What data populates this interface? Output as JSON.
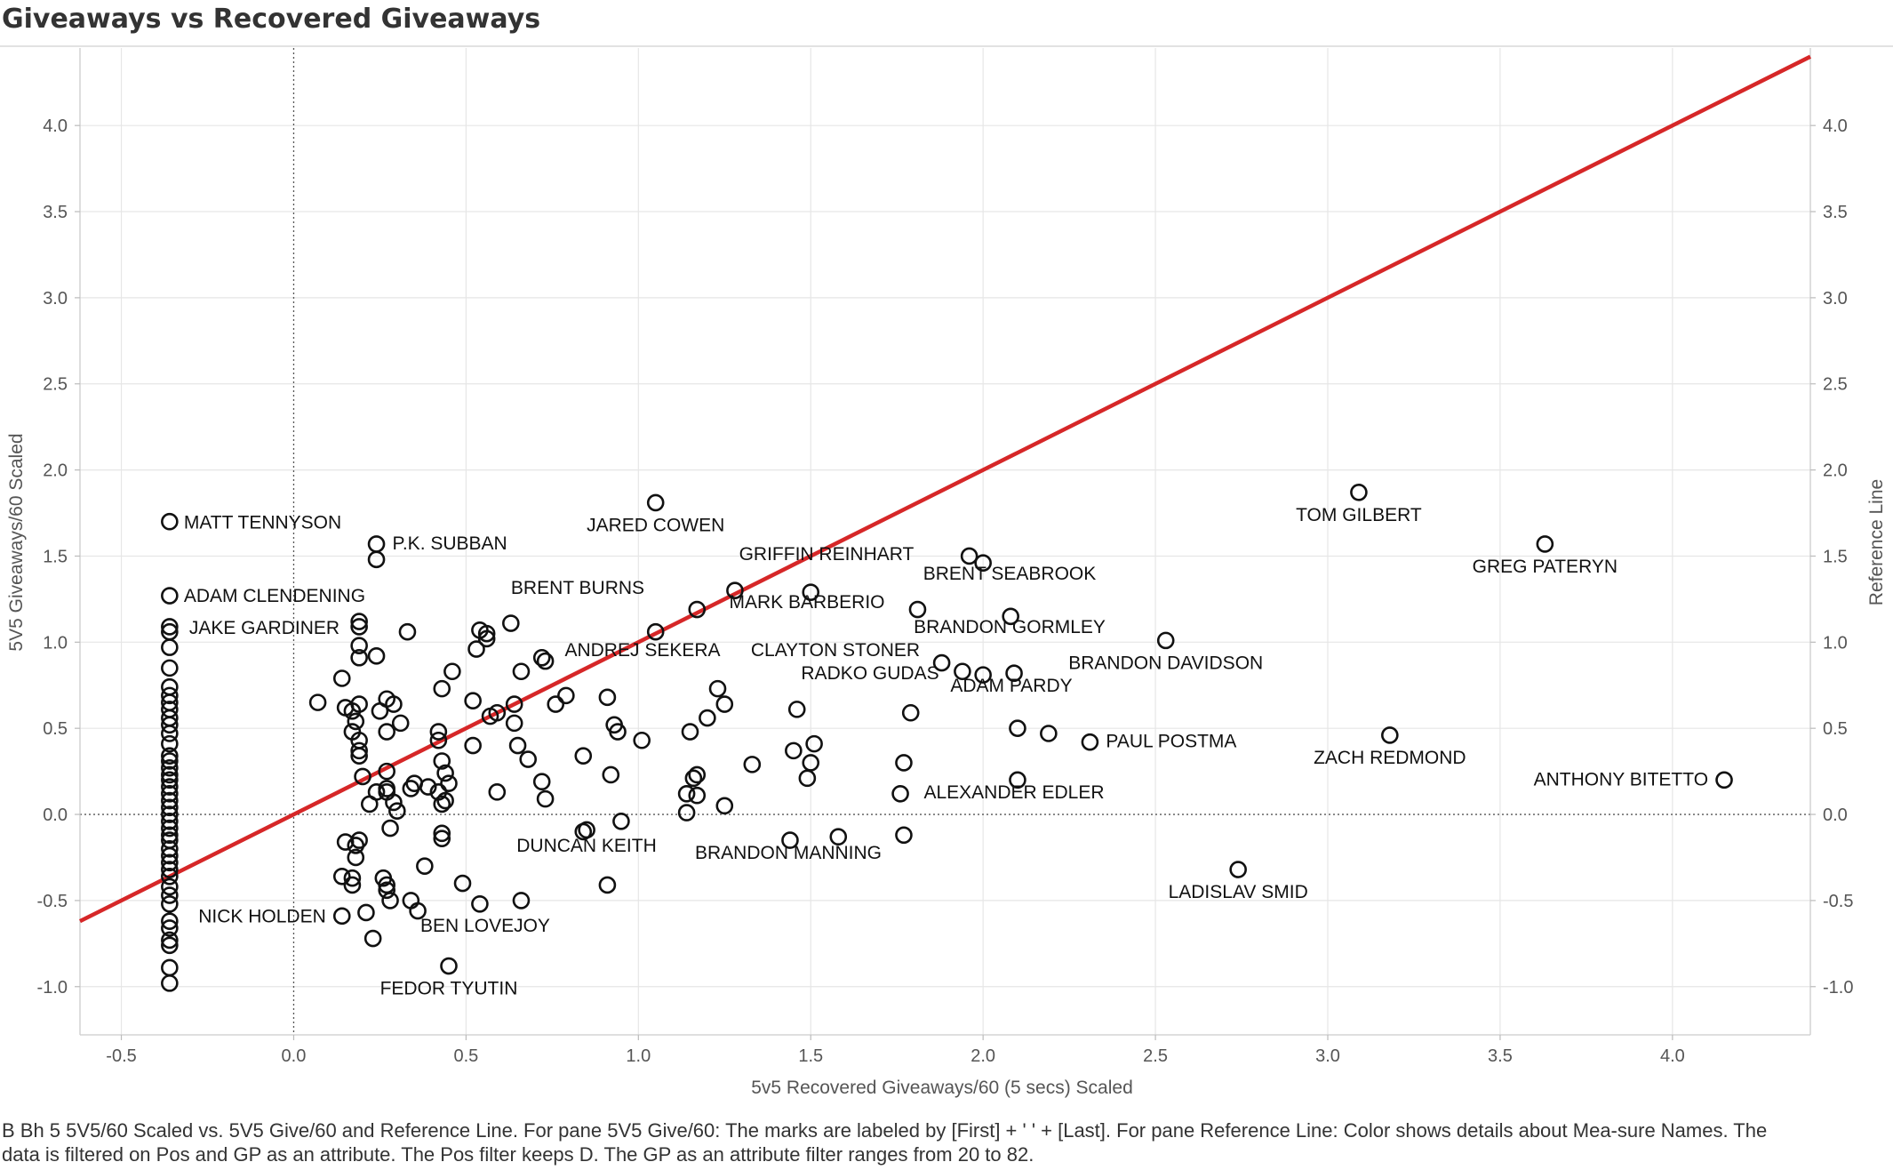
{
  "title": "Giveaways vs Recovered Giveaways",
  "caption": "B Bh 5 5V5/60 Scaled vs. 5V5 Give/60 and Reference Line.  For pane 5V5 Give/60:  The marks are labeled by [First] + ' ' + [Last].  For pane Reference Line:  Color shows details about Mea-sure Names. The data is filtered on Pos and GP as an attribute. The Pos filter keeps D. The GP as an attribute filter ranges from 20 to 82.",
  "chart_data": {
    "type": "scatter",
    "title": "Giveaways vs Recovered Giveaways",
    "xlabel": "5v5 Recovered Giveaways/60 (5 secs) Scaled",
    "ylabel": "5V5 Giveaways/60 Scaled",
    "y2label": "Reference Line",
    "xlim": [
      -0.62,
      4.4
    ],
    "ylim": [
      -1.28,
      4.45
    ],
    "xticks": [
      -0.5,
      0.0,
      0.5,
      1.0,
      1.5,
      2.0,
      2.5,
      3.0,
      3.5,
      4.0
    ],
    "yticks": [
      -1.0,
      -0.5,
      0.0,
      0.5,
      1.0,
      1.5,
      2.0,
      2.5,
      3.0,
      3.5,
      4.0
    ],
    "xtick_labels": [
      "-0.5",
      "0.0",
      "0.5",
      "1.0",
      "1.5",
      "2.0",
      "2.5",
      "3.0",
      "3.5",
      "4.0"
    ],
    "ytick_labels": [
      "-1.0",
      "-0.5",
      "0.0",
      "0.5",
      "1.0",
      "1.5",
      "2.0",
      "2.5",
      "3.0",
      "3.5",
      "4.0"
    ],
    "grid": true,
    "reference_line": {
      "color": "#d62728",
      "x": [
        -0.62,
        4.4
      ],
      "y": [
        -0.62,
        4.4
      ]
    },
    "marker_color": "#111111",
    "labeled_points": [
      {
        "x": -0.36,
        "y": 1.7,
        "label": "MATT TENNYSON",
        "anchor": "right"
      },
      {
        "x": 0.24,
        "y": 1.57,
        "label": "P.K. SUBBAN",
        "anchor": "right"
      },
      {
        "x": 1.05,
        "y": 1.81,
        "label": "JARED COWEN",
        "anchor": "below"
      },
      {
        "x": 3.09,
        "y": 1.87,
        "label": "TOM GILBERT",
        "anchor": "below"
      },
      {
        "x": 3.63,
        "y": 1.57,
        "label": "GREG PATERYN",
        "anchor": "below"
      },
      {
        "x": -0.36,
        "y": 1.27,
        "label": "ADAM CLENDENING",
        "anchor": "right"
      },
      {
        "x": -0.36,
        "y": 1.08,
        "label": "JAKE GARDINER",
        "anchor": "right"
      },
      {
        "x": 0.92,
        "y": 1.26,
        "label": "BRENT BURNS",
        "anchor": "custom"
      },
      {
        "x": 1.38,
        "y": 1.44,
        "label": "GRIFFIN REINHART",
        "anchor": "custom"
      },
      {
        "x": 1.87,
        "y": 1.32,
        "label": "BRENT SEABROOK",
        "anchor": "custom"
      },
      {
        "x": 1.68,
        "y": 1.15,
        "label": "MARK BARBERIO",
        "anchor": "custom"
      },
      {
        "x": 2.08,
        "y": 1.01,
        "label": "BRANDON GORMLEY",
        "anchor": "custom"
      },
      {
        "x": 0.72,
        "y": 0.9,
        "label": "ANDREJ SEKERA",
        "anchor": "custom"
      },
      {
        "x": 1.88,
        "y": 0.87,
        "label": "CLAYTON STONER",
        "anchor": "custom"
      },
      {
        "x": 2.53,
        "y": 1.01,
        "label": "BRANDON DAVIDSON",
        "anchor": "below-ish"
      },
      {
        "x": 1.57,
        "y": 0.73,
        "label": "RADKO GUDAS",
        "anchor": "custom"
      },
      {
        "x": 2.1,
        "y": 0.82,
        "label": "ADAM PARDY",
        "anchor": "custom"
      },
      {
        "x": 2.31,
        "y": 0.42,
        "label": "PAUL POSTMA",
        "anchor": "right"
      },
      {
        "x": 3.18,
        "y": 0.46,
        "label": "ZACH REDMOND",
        "anchor": "below"
      },
      {
        "x": 4.15,
        "y": 0.2,
        "label": "ANTHONY BITETTO",
        "anchor": "left"
      },
      {
        "x": 1.77,
        "y": -0.12,
        "label": "ALEXANDER EDLER",
        "anchor": "custom"
      },
      {
        "x": 0.85,
        "y": -0.07,
        "label": "DUNCAN KEITH",
        "anchor": "custom"
      },
      {
        "x": 1.44,
        "y": -0.14,
        "label": "BRANDON MANNING",
        "anchor": "custom"
      },
      {
        "x": 2.74,
        "y": -0.32,
        "label": "LADISLAV SMID",
        "anchor": "below"
      },
      {
        "x": 0.14,
        "y": -0.59,
        "label": "NICK HOLDEN",
        "anchor": "left"
      },
      {
        "x": 0.36,
        "y": -0.56,
        "label": "BEN LOVEJOY",
        "anchor": "custom"
      },
      {
        "x": 0.45,
        "y": -0.88,
        "label": "FEDOR TYUTIN",
        "anchor": "below"
      }
    ],
    "points": [
      {
        "x": -0.36,
        "y": 1.7
      },
      {
        "x": -0.36,
        "y": 1.27
      },
      {
        "x": -0.36,
        "y": 1.09
      },
      {
        "x": -0.36,
        "y": 1.06
      },
      {
        "x": -0.36,
        "y": 0.97
      },
      {
        "x": -0.36,
        "y": 0.85
      },
      {
        "x": -0.36,
        "y": 0.74
      },
      {
        "x": -0.36,
        "y": 0.69
      },
      {
        "x": -0.36,
        "y": 0.65
      },
      {
        "x": -0.36,
        "y": 0.61
      },
      {
        "x": -0.36,
        "y": 0.56
      },
      {
        "x": -0.36,
        "y": 0.52
      },
      {
        "x": -0.36,
        "y": 0.47
      },
      {
        "x": -0.36,
        "y": 0.41
      },
      {
        "x": -0.36,
        "y": 0.34
      },
      {
        "x": -0.36,
        "y": 0.31
      },
      {
        "x": -0.36,
        "y": 0.27
      },
      {
        "x": -0.36,
        "y": 0.23
      },
      {
        "x": -0.36,
        "y": 0.2
      },
      {
        "x": -0.36,
        "y": 0.16
      },
      {
        "x": -0.36,
        "y": 0.12
      },
      {
        "x": -0.36,
        "y": 0.08
      },
      {
        "x": -0.36,
        "y": 0.04
      },
      {
        "x": -0.36,
        "y": 0.0
      },
      {
        "x": -0.36,
        "y": -0.04
      },
      {
        "x": -0.36,
        "y": -0.08
      },
      {
        "x": -0.36,
        "y": -0.12
      },
      {
        "x": -0.36,
        "y": -0.15
      },
      {
        "x": -0.36,
        "y": -0.2
      },
      {
        "x": -0.36,
        "y": -0.24
      },
      {
        "x": -0.36,
        "y": -0.28
      },
      {
        "x": -0.36,
        "y": -0.32
      },
      {
        "x": -0.36,
        "y": -0.36
      },
      {
        "x": -0.36,
        "y": -0.42
      },
      {
        "x": -0.36,
        "y": -0.47
      },
      {
        "x": -0.36,
        "y": -0.52
      },
      {
        "x": -0.36,
        "y": -0.62
      },
      {
        "x": -0.36,
        "y": -0.66
      },
      {
        "x": -0.36,
        "y": -0.73
      },
      {
        "x": -0.36,
        "y": -0.76
      },
      {
        "x": -0.36,
        "y": -0.89
      },
      {
        "x": -0.36,
        "y": -0.98
      },
      {
        "x": 0.24,
        "y": 1.57
      },
      {
        "x": 0.24,
        "y": 1.48
      },
      {
        "x": 1.05,
        "y": 1.81
      },
      {
        "x": 3.09,
        "y": 1.87
      },
      {
        "x": 3.63,
        "y": 1.57
      },
      {
        "x": 1.96,
        "y": 1.5
      },
      {
        "x": 2.0,
        "y": 1.46
      },
      {
        "x": 1.5,
        "y": 1.29
      },
      {
        "x": 1.28,
        "y": 1.3
      },
      {
        "x": 1.17,
        "y": 1.19
      },
      {
        "x": 1.81,
        "y": 1.19
      },
      {
        "x": 2.08,
        "y": 1.15
      },
      {
        "x": 1.05,
        "y": 1.06
      },
      {
        "x": 2.53,
        "y": 1.01
      },
      {
        "x": 0.19,
        "y": 1.12
      },
      {
        "x": 0.19,
        "y": 1.09
      },
      {
        "x": 0.33,
        "y": 1.06
      },
      {
        "x": 0.54,
        "y": 1.07
      },
      {
        "x": 0.56,
        "y": 1.05
      },
      {
        "x": 0.56,
        "y": 1.02
      },
      {
        "x": 0.53,
        "y": 0.96
      },
      {
        "x": 0.63,
        "y": 1.11
      },
      {
        "x": 0.19,
        "y": 0.98
      },
      {
        "x": 0.24,
        "y": 0.92
      },
      {
        "x": 0.19,
        "y": 0.91
      },
      {
        "x": 0.72,
        "y": 0.91
      },
      {
        "x": 0.73,
        "y": 0.89
      },
      {
        "x": 0.46,
        "y": 0.83
      },
      {
        "x": 0.66,
        "y": 0.83
      },
      {
        "x": 0.14,
        "y": 0.79
      },
      {
        "x": 1.88,
        "y": 0.88
      },
      {
        "x": 1.94,
        "y": 0.83
      },
      {
        "x": 2.0,
        "y": 0.81
      },
      {
        "x": 2.09,
        "y": 0.82
      },
      {
        "x": 1.23,
        "y": 0.73
      },
      {
        "x": 1.25,
        "y": 0.64
      },
      {
        "x": 0.43,
        "y": 0.73
      },
      {
        "x": 0.79,
        "y": 0.69
      },
      {
        "x": 0.91,
        "y": 0.68
      },
      {
        "x": 0.52,
        "y": 0.66
      },
      {
        "x": 0.27,
        "y": 0.67
      },
      {
        "x": 0.07,
        "y": 0.65
      },
      {
        "x": 0.76,
        "y": 0.64
      },
      {
        "x": 0.64,
        "y": 0.64
      },
      {
        "x": 0.29,
        "y": 0.64
      },
      {
        "x": 0.19,
        "y": 0.64
      },
      {
        "x": 0.15,
        "y": 0.62
      },
      {
        "x": 0.17,
        "y": 0.6
      },
      {
        "x": 0.25,
        "y": 0.6
      },
      {
        "x": 0.59,
        "y": 0.59
      },
      {
        "x": 1.2,
        "y": 0.56
      },
      {
        "x": 0.57,
        "y": 0.57
      },
      {
        "x": 1.46,
        "y": 0.61
      },
      {
        "x": 1.79,
        "y": 0.59
      },
      {
        "x": 0.18,
        "y": 0.54
      },
      {
        "x": 0.64,
        "y": 0.53
      },
      {
        "x": 0.31,
        "y": 0.53
      },
      {
        "x": 0.93,
        "y": 0.52
      },
      {
        "x": 0.17,
        "y": 0.48
      },
      {
        "x": 0.27,
        "y": 0.48
      },
      {
        "x": 0.42,
        "y": 0.48
      },
      {
        "x": 0.94,
        "y": 0.48
      },
      {
        "x": 1.15,
        "y": 0.48
      },
      {
        "x": 1.01,
        "y": 0.43
      },
      {
        "x": 0.19,
        "y": 0.43
      },
      {
        "x": 0.42,
        "y": 0.43
      },
      {
        "x": 0.52,
        "y": 0.4
      },
      {
        "x": 0.65,
        "y": 0.4
      },
      {
        "x": 2.1,
        "y": 0.5
      },
      {
        "x": 2.19,
        "y": 0.47
      },
      {
        "x": 2.31,
        "y": 0.42
      },
      {
        "x": 3.18,
        "y": 0.46
      },
      {
        "x": 1.51,
        "y": 0.41
      },
      {
        "x": 1.45,
        "y": 0.37
      },
      {
        "x": 0.19,
        "y": 0.37
      },
      {
        "x": 0.19,
        "y": 0.34
      },
      {
        "x": 0.84,
        "y": 0.34
      },
      {
        "x": 0.68,
        "y": 0.32
      },
      {
        "x": 0.43,
        "y": 0.31
      },
      {
        "x": 1.33,
        "y": 0.29
      },
      {
        "x": 1.5,
        "y": 0.3
      },
      {
        "x": 1.77,
        "y": 0.3
      },
      {
        "x": 0.27,
        "y": 0.25
      },
      {
        "x": 0.44,
        "y": 0.24
      },
      {
        "x": 0.92,
        "y": 0.23
      },
      {
        "x": 1.17,
        "y": 0.23
      },
      {
        "x": 1.16,
        "y": 0.21
      },
      {
        "x": 0.2,
        "y": 0.22
      },
      {
        "x": 1.49,
        "y": 0.21
      },
      {
        "x": 2.1,
        "y": 0.2
      },
      {
        "x": 4.15,
        "y": 0.2
      },
      {
        "x": 0.72,
        "y": 0.19
      },
      {
        "x": 0.45,
        "y": 0.18
      },
      {
        "x": 0.35,
        "y": 0.18
      },
      {
        "x": 0.39,
        "y": 0.16
      },
      {
        "x": 0.34,
        "y": 0.15
      },
      {
        "x": 0.27,
        "y": 0.15
      },
      {
        "x": 0.27,
        "y": 0.13
      },
      {
        "x": 0.24,
        "y": 0.13
      },
      {
        "x": 0.42,
        "y": 0.13
      },
      {
        "x": 0.59,
        "y": 0.13
      },
      {
        "x": 1.14,
        "y": 0.12
      },
      {
        "x": 1.17,
        "y": 0.11
      },
      {
        "x": 1.76,
        "y": 0.12
      },
      {
        "x": 0.44,
        "y": 0.08
      },
      {
        "x": 0.29,
        "y": 0.07
      },
      {
        "x": 0.73,
        "y": 0.09
      },
      {
        "x": 0.22,
        "y": 0.06
      },
      {
        "x": 0.43,
        "y": 0.06
      },
      {
        "x": 1.25,
        "y": 0.05
      },
      {
        "x": 0.3,
        "y": 0.02
      },
      {
        "x": 1.14,
        "y": 0.01
      },
      {
        "x": 0.95,
        "y": -0.04
      },
      {
        "x": 0.28,
        "y": -0.08
      },
      {
        "x": 0.85,
        "y": -0.09
      },
      {
        "x": 0.84,
        "y": -0.1
      },
      {
        "x": 0.43,
        "y": -0.11
      },
      {
        "x": 0.43,
        "y": -0.14
      },
      {
        "x": 1.58,
        "y": -0.13
      },
      {
        "x": 1.77,
        "y": -0.12
      },
      {
        "x": 1.44,
        "y": -0.15
      },
      {
        "x": 0.19,
        "y": -0.15
      },
      {
        "x": 0.15,
        "y": -0.16
      },
      {
        "x": 0.18,
        "y": -0.18
      },
      {
        "x": 0.18,
        "y": -0.25
      },
      {
        "x": 0.38,
        "y": -0.3
      },
      {
        "x": 2.74,
        "y": -0.32
      },
      {
        "x": 0.14,
        "y": -0.36
      },
      {
        "x": 0.17,
        "y": -0.37
      },
      {
        "x": 0.26,
        "y": -0.37
      },
      {
        "x": 0.27,
        "y": -0.41
      },
      {
        "x": 0.17,
        "y": -0.41
      },
      {
        "x": 0.49,
        "y": -0.4
      },
      {
        "x": 0.91,
        "y": -0.41
      },
      {
        "x": 0.27,
        "y": -0.44
      },
      {
        "x": 0.28,
        "y": -0.5
      },
      {
        "x": 0.34,
        "y": -0.5
      },
      {
        "x": 0.66,
        "y": -0.5
      },
      {
        "x": 0.54,
        "y": -0.52
      },
      {
        "x": 0.36,
        "y": -0.56
      },
      {
        "x": 0.21,
        "y": -0.57
      },
      {
        "x": 0.14,
        "y": -0.59
      },
      {
        "x": 0.23,
        "y": -0.72
      },
      {
        "x": 0.45,
        "y": -0.88
      }
    ]
  }
}
